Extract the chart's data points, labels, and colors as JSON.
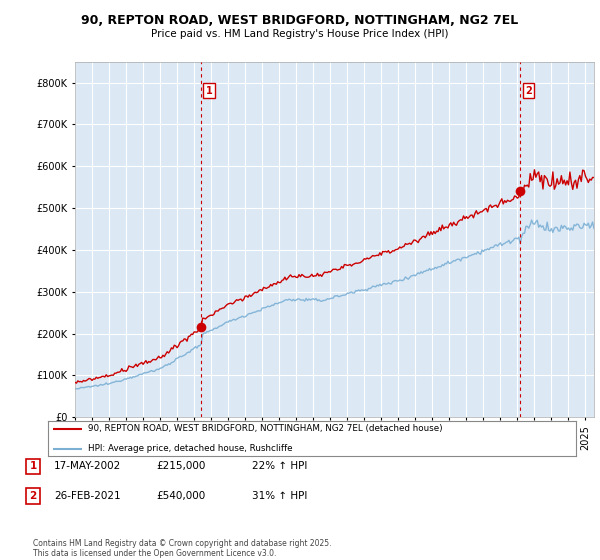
{
  "title1": "90, REPTON ROAD, WEST BRIDGFORD, NOTTINGHAM, NG2 7EL",
  "title2": "Price paid vs. HM Land Registry's House Price Index (HPI)",
  "ylabel_ticks": [
    "£0",
    "£100K",
    "£200K",
    "£300K",
    "£400K",
    "£500K",
    "£600K",
    "£700K",
    "£800K"
  ],
  "ytick_vals": [
    0,
    100000,
    200000,
    300000,
    400000,
    500000,
    600000,
    700000,
    800000
  ],
  "ylim": [
    0,
    850000
  ],
  "xlim_start": 1995.0,
  "xlim_end": 2025.5,
  "transaction1_x": 2002.38,
  "transaction1_y": 215000,
  "transaction1_label": "1",
  "transaction2_x": 2021.15,
  "transaction2_y": 540000,
  "transaction2_label": "2",
  "vline1_x": 2002.38,
  "vline2_x": 2021.15,
  "legend_line1": "90, REPTON ROAD, WEST BRIDGFORD, NOTTINGHAM, NG2 7EL (detached house)",
  "legend_line2": "HPI: Average price, detached house, Rushcliffe",
  "note1_label": "1",
  "note1_date": "17-MAY-2002",
  "note1_price": "£215,000",
  "note1_hpi": "22% ↑ HPI",
  "note2_label": "2",
  "note2_date": "26-FEB-2021",
  "note2_price": "£540,000",
  "note2_hpi": "31% ↑ HPI",
  "footer": "Contains HM Land Registry data © Crown copyright and database right 2025.\nThis data is licensed under the Open Government Licence v3.0.",
  "line_color_property": "#cc0000",
  "line_color_hpi": "#7bafd4",
  "plot_bg_color": "#dce9f5",
  "grid_color": "#ffffff"
}
